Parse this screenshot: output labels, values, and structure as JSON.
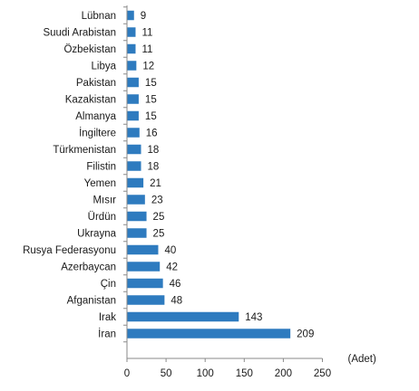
{
  "chart_data": {
    "type": "bar",
    "orientation": "horizontal",
    "categories": [
      "Lübnan",
      "Suudi Arabistan",
      "Özbekistan",
      "Libya",
      "Pakistan",
      "Kazakistan",
      "Almanya",
      "İngiltere",
      "Türkmenistan",
      "Filistin",
      "Yemen",
      "Mısır",
      "Ürdün",
      "Ukrayna",
      "Rusya Federasyonu",
      "Azerbaycan",
      "Çin",
      "Afganistan",
      "Irak",
      "İran"
    ],
    "values": [
      9,
      11,
      11,
      12,
      15,
      15,
      15,
      16,
      18,
      18,
      21,
      23,
      25,
      25,
      40,
      42,
      46,
      48,
      143,
      209
    ],
    "data_labels": [
      "9",
      "11",
      "11",
      "12",
      "15",
      "15",
      "15",
      "16",
      "18",
      "18",
      "21",
      "23",
      "25",
      "25",
      "40",
      "42",
      "46",
      "48",
      "143",
      "209"
    ],
    "xlim": [
      0,
      250
    ],
    "x_ticks": [
      "0",
      "50",
      "100",
      "150",
      "200",
      "250"
    ],
    "x_tick_values": [
      0,
      50,
      100,
      150,
      200,
      250
    ],
    "unit_label": "(Adet)",
    "bar_color": "#2e7bbf",
    "grid": false,
    "legend": "none"
  }
}
